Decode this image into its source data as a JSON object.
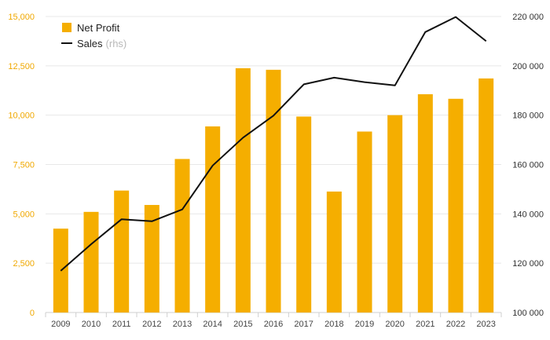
{
  "chart_data": {
    "type": "bar",
    "categories": [
      "2009",
      "2010",
      "2011",
      "2012",
      "2013",
      "2014",
      "2015",
      "2016",
      "2017",
      "2018",
      "2019",
      "2020",
      "2021",
      "2022",
      "2023"
    ],
    "series": [
      {
        "name": "Net Profit",
        "type": "bar",
        "axis": "left",
        "color": "#f5ae00",
        "values": [
          4250,
          5100,
          6180,
          5450,
          7780,
          9430,
          12380,
          12300,
          9930,
          6130,
          9170,
          10000,
          11060,
          10830,
          11860
        ]
      },
      {
        "name": "Sales",
        "type": "line",
        "axis": "right",
        "color": "#111111",
        "values": [
          116900,
          127700,
          137800,
          137000,
          141800,
          159600,
          170900,
          179800,
          192500,
          195200,
          193400,
          192100,
          213700,
          219800,
          210000
        ]
      }
    ],
    "legend_hint": "(rhs)",
    "left_axis": {
      "ylim": [
        0,
        15000
      ],
      "ticks": [
        "0",
        "2,500",
        "5,000",
        "7,500",
        "10,000",
        "12,500",
        "15,000"
      ],
      "values": [
        0,
        2500,
        5000,
        7500,
        10000,
        12500,
        15000
      ]
    },
    "right_axis": {
      "ylim": [
        100000,
        220000
      ],
      "ticks": [
        "100 000",
        "120 000",
        "140 000",
        "160 000",
        "180 000",
        "200 000",
        "220 000"
      ],
      "values": [
        100000,
        120000,
        140000,
        160000,
        180000,
        200000,
        220000
      ]
    },
    "grid": true,
    "legend_position": "top-left"
  }
}
